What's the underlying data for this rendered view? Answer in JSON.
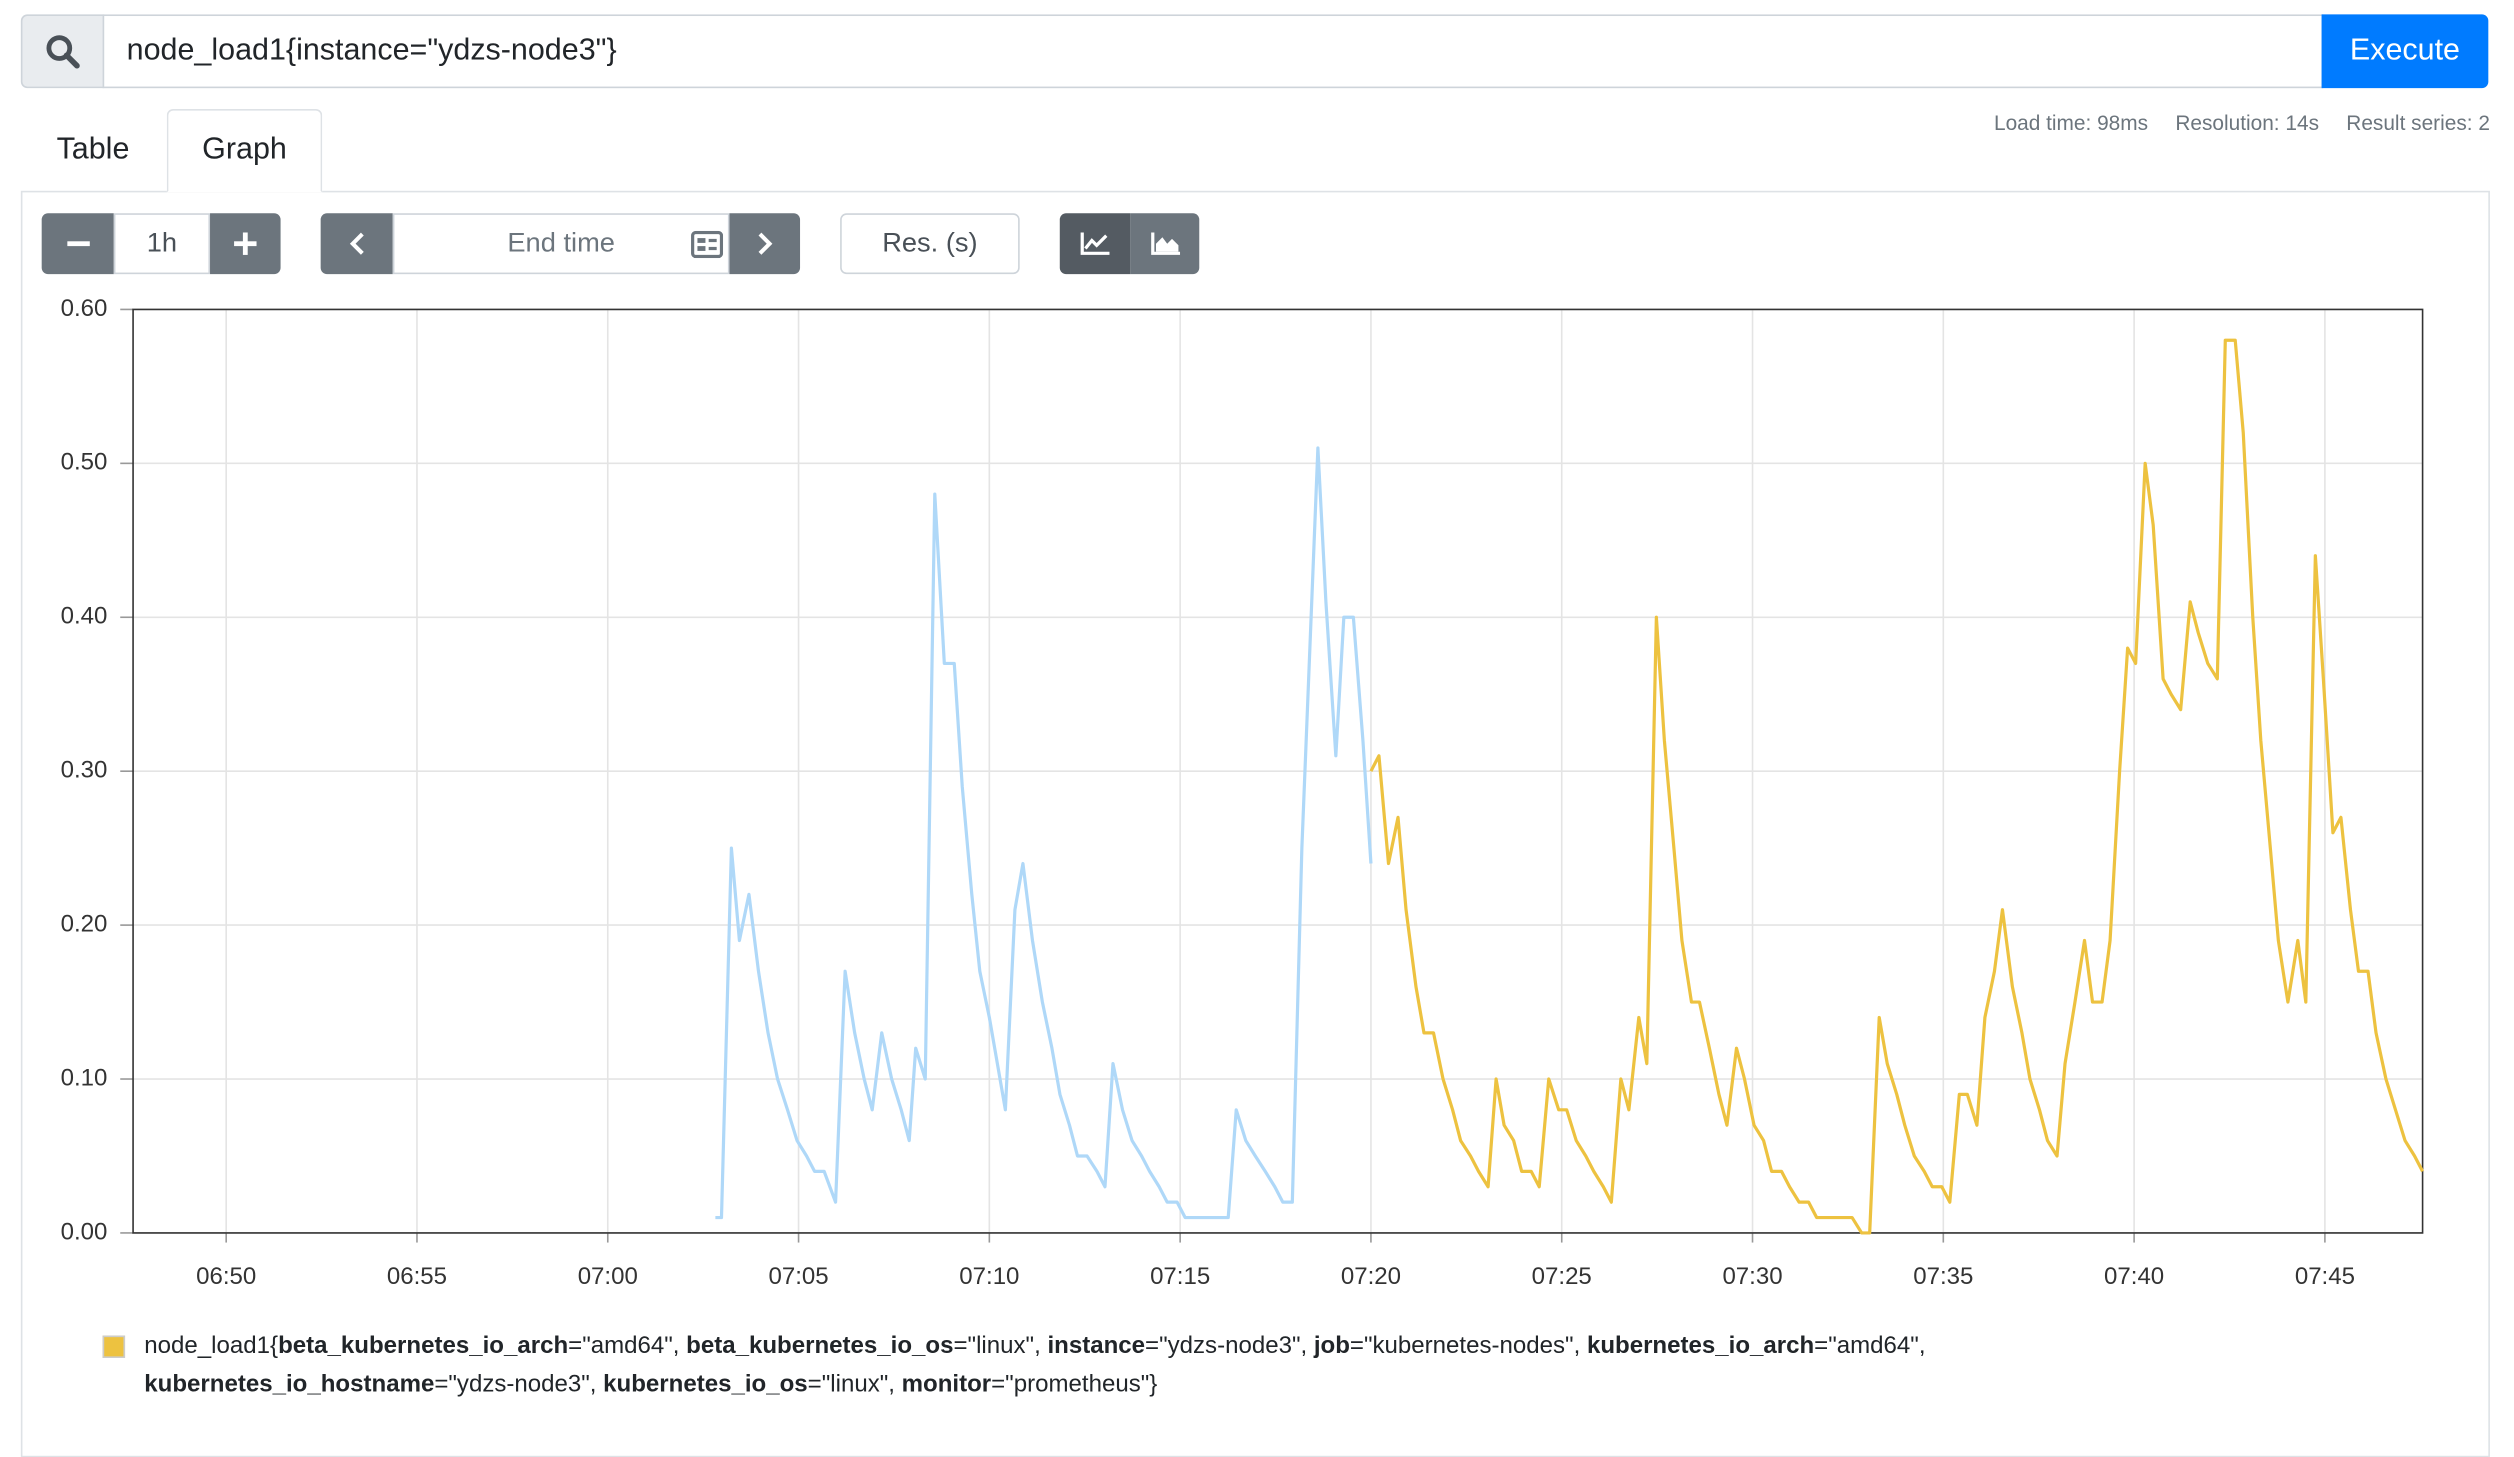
{
  "query": {
    "text": "node_load1{instance=\"ydzs-node3\"}",
    "button": "Execute"
  },
  "tabs": [
    "Table",
    "Graph"
  ],
  "stats": [
    "Load time: 98ms",
    "Resolution: 14s",
    "Result series: 2"
  ],
  "controls": {
    "range": "1h",
    "end_time": "End time",
    "resolution": "Res. (s)"
  },
  "chart_data": {
    "type": "line",
    "xlim": [
      407.56,
      467.56
    ],
    "xticks": [
      {
        "value": 410,
        "label": "06:50"
      },
      {
        "value": 415,
        "label": "06:55"
      },
      {
        "value": 420,
        "label": "07:00"
      },
      {
        "value": 425,
        "label": "07:05"
      },
      {
        "value": 430,
        "label": "07:10"
      },
      {
        "value": 435,
        "label": "07:15"
      },
      {
        "value": 440,
        "label": "07:20"
      },
      {
        "value": 445,
        "label": "07:25"
      },
      {
        "value": 450,
        "label": "07:30"
      },
      {
        "value": 455,
        "label": "07:35"
      },
      {
        "value": 460,
        "label": "07:40"
      },
      {
        "value": 465,
        "label": "07:45"
      }
    ],
    "ylim": [
      0,
      0.6
    ],
    "yticks": [
      {
        "value": 0,
        "label": "0.00"
      },
      {
        "value": 0.1,
        "label": "0.10"
      },
      {
        "value": 0.2,
        "label": "0.20"
      },
      {
        "value": 0.3,
        "label": "0.30"
      },
      {
        "value": 0.4,
        "label": "0.40"
      },
      {
        "value": 0.5,
        "label": "0.50"
      },
      {
        "value": 0.6,
        "label": "0.60"
      }
    ],
    "grid": true,
    "series": [
      {
        "color": "#afd8f8",
        "x": [
          422.82,
          422.98,
          423.24,
          423.45,
          423.7,
          423.95,
          424.2,
          424.45,
          424.71,
          424.96,
          425.21,
          425.42,
          425.67,
          425.97,
          426.22,
          426.47,
          426.72,
          426.93,
          427.18,
          427.44,
          427.69,
          427.9,
          428.07,
          428.32,
          428.57,
          428.82,
          429.08,
          429.29,
          429.54,
          429.75,
          430.0,
          430.21,
          430.42,
          430.67,
          430.88,
          431.13,
          431.39,
          431.64,
          431.85,
          432.1,
          432.31,
          432.56,
          432.82,
          433.03,
          433.24,
          433.49,
          433.74,
          433.99,
          434.2,
          434.45,
          434.66,
          434.92,
          435.13,
          436.26,
          436.47,
          436.72,
          436.97,
          437.23,
          437.48,
          437.69,
          437.94,
          438.19,
          438.4,
          438.61,
          438.82,
          439.08,
          439.29,
          439.54,
          439.79,
          440.0
        ],
        "values": [
          0.01,
          0.01,
          0.25,
          0.19,
          0.22,
          0.17,
          0.13,
          0.1,
          0.08,
          0.06,
          0.05,
          0.04,
          0.04,
          0.02,
          0.17,
          0.13,
          0.1,
          0.08,
          0.13,
          0.1,
          0.08,
          0.06,
          0.12,
          0.1,
          0.48,
          0.37,
          0.37,
          0.29,
          0.22,
          0.17,
          0.14,
          0.11,
          0.08,
          0.21,
          0.24,
          0.19,
          0.15,
          0.12,
          0.09,
          0.07,
          0.05,
          0.05,
          0.04,
          0.03,
          0.11,
          0.08,
          0.06,
          0.05,
          0.04,
          0.03,
          0.02,
          0.02,
          0.01,
          0.01,
          0.08,
          0.06,
          0.05,
          0.04,
          0.03,
          0.02,
          0.02,
          0.25,
          0.38,
          0.51,
          0.41,
          0.31,
          0.4,
          0.4,
          0.32,
          0.24
        ]
      },
      {
        "name": "node_load1{beta_kubernetes_io_arch=\"amd64\", beta_kubernetes_io_os=\"linux\", instance=\"ydzs-node3\", job=\"kubernetes-nodes\", kubernetes_io_arch=\"amd64\", kubernetes_io_hostname=\"ydzs-node3\", kubernetes_io_os=\"linux\", monitor=\"prometheus\"}",
        "color": "#edc240",
        "x": [
          440.0,
          440.21,
          440.46,
          440.71,
          440.92,
          441.18,
          441.39,
          441.64,
          441.89,
          442.14,
          442.35,
          442.61,
          442.82,
          443.07,
          443.28,
          443.49,
          443.74,
          443.95,
          444.2,
          444.41,
          444.66,
          444.92,
          445.13,
          445.38,
          445.63,
          445.84,
          446.09,
          446.3,
          446.55,
          446.76,
          447.02,
          447.23,
          447.48,
          447.69,
          447.94,
          448.15,
          448.4,
          448.61,
          448.87,
          449.12,
          449.33,
          449.58,
          449.79,
          450.04,
          450.29,
          450.5,
          450.76,
          450.97,
          451.22,
          451.47,
          451.68,
          452.61,
          452.86,
          453.07,
          453.32,
          453.53,
          453.78,
          453.99,
          454.24,
          454.5,
          454.71,
          454.96,
          455.17,
          455.42,
          455.63,
          455.88,
          456.09,
          456.34,
          456.55,
          456.81,
          457.06,
          457.27,
          457.52,
          457.73,
          457.98,
          458.19,
          458.45,
          458.7,
          458.91,
          459.16,
          459.37,
          459.62,
          459.83,
          460.04,
          460.29,
          460.5,
          460.76,
          460.97,
          461.22,
          461.47,
          461.68,
          461.93,
          462.18,
          462.39,
          462.65,
          462.86,
          463.11,
          463.32,
          463.57,
          463.78,
          464.03,
          464.29,
          464.5,
          464.75,
          464.96,
          465.21,
          465.42,
          465.67,
          465.88,
          466.13,
          466.34,
          466.6,
          466.85,
          467.1,
          467.35,
          467.56
        ],
        "values": [
          0.3,
          0.31,
          0.24,
          0.27,
          0.21,
          0.16,
          0.13,
          0.13,
          0.1,
          0.08,
          0.06,
          0.05,
          0.04,
          0.03,
          0.1,
          0.07,
          0.06,
          0.04,
          0.04,
          0.03,
          0.1,
          0.08,
          0.08,
          0.06,
          0.05,
          0.04,
          0.03,
          0.02,
          0.1,
          0.08,
          0.14,
          0.11,
          0.4,
          0.32,
          0.25,
          0.19,
          0.15,
          0.15,
          0.12,
          0.09,
          0.07,
          0.12,
          0.1,
          0.07,
          0.06,
          0.04,
          0.04,
          0.03,
          0.02,
          0.02,
          0.01,
          0.01,
          0,
          0,
          0.14,
          0.11,
          0.09,
          0.07,
          0.05,
          0.04,
          0.03,
          0.03,
          0.02,
          0.09,
          0.09,
          0.07,
          0.14,
          0.17,
          0.21,
          0.16,
          0.13,
          0.1,
          0.08,
          0.06,
          0.05,
          0.11,
          0.15,
          0.19,
          0.15,
          0.15,
          0.19,
          0.3,
          0.38,
          0.37,
          0.5,
          0.46,
          0.36,
          0.35,
          0.34,
          0.41,
          0.39,
          0.37,
          0.36,
          0.58,
          0.58,
          0.52,
          0.4,
          0.32,
          0.25,
          0.19,
          0.15,
          0.19,
          0.15,
          0.44,
          0.36,
          0.26,
          0.27,
          0.21,
          0.17,
          0.17,
          0.13,
          0.1,
          0.08,
          0.06,
          0.05,
          0.04
        ]
      }
    ]
  }
}
